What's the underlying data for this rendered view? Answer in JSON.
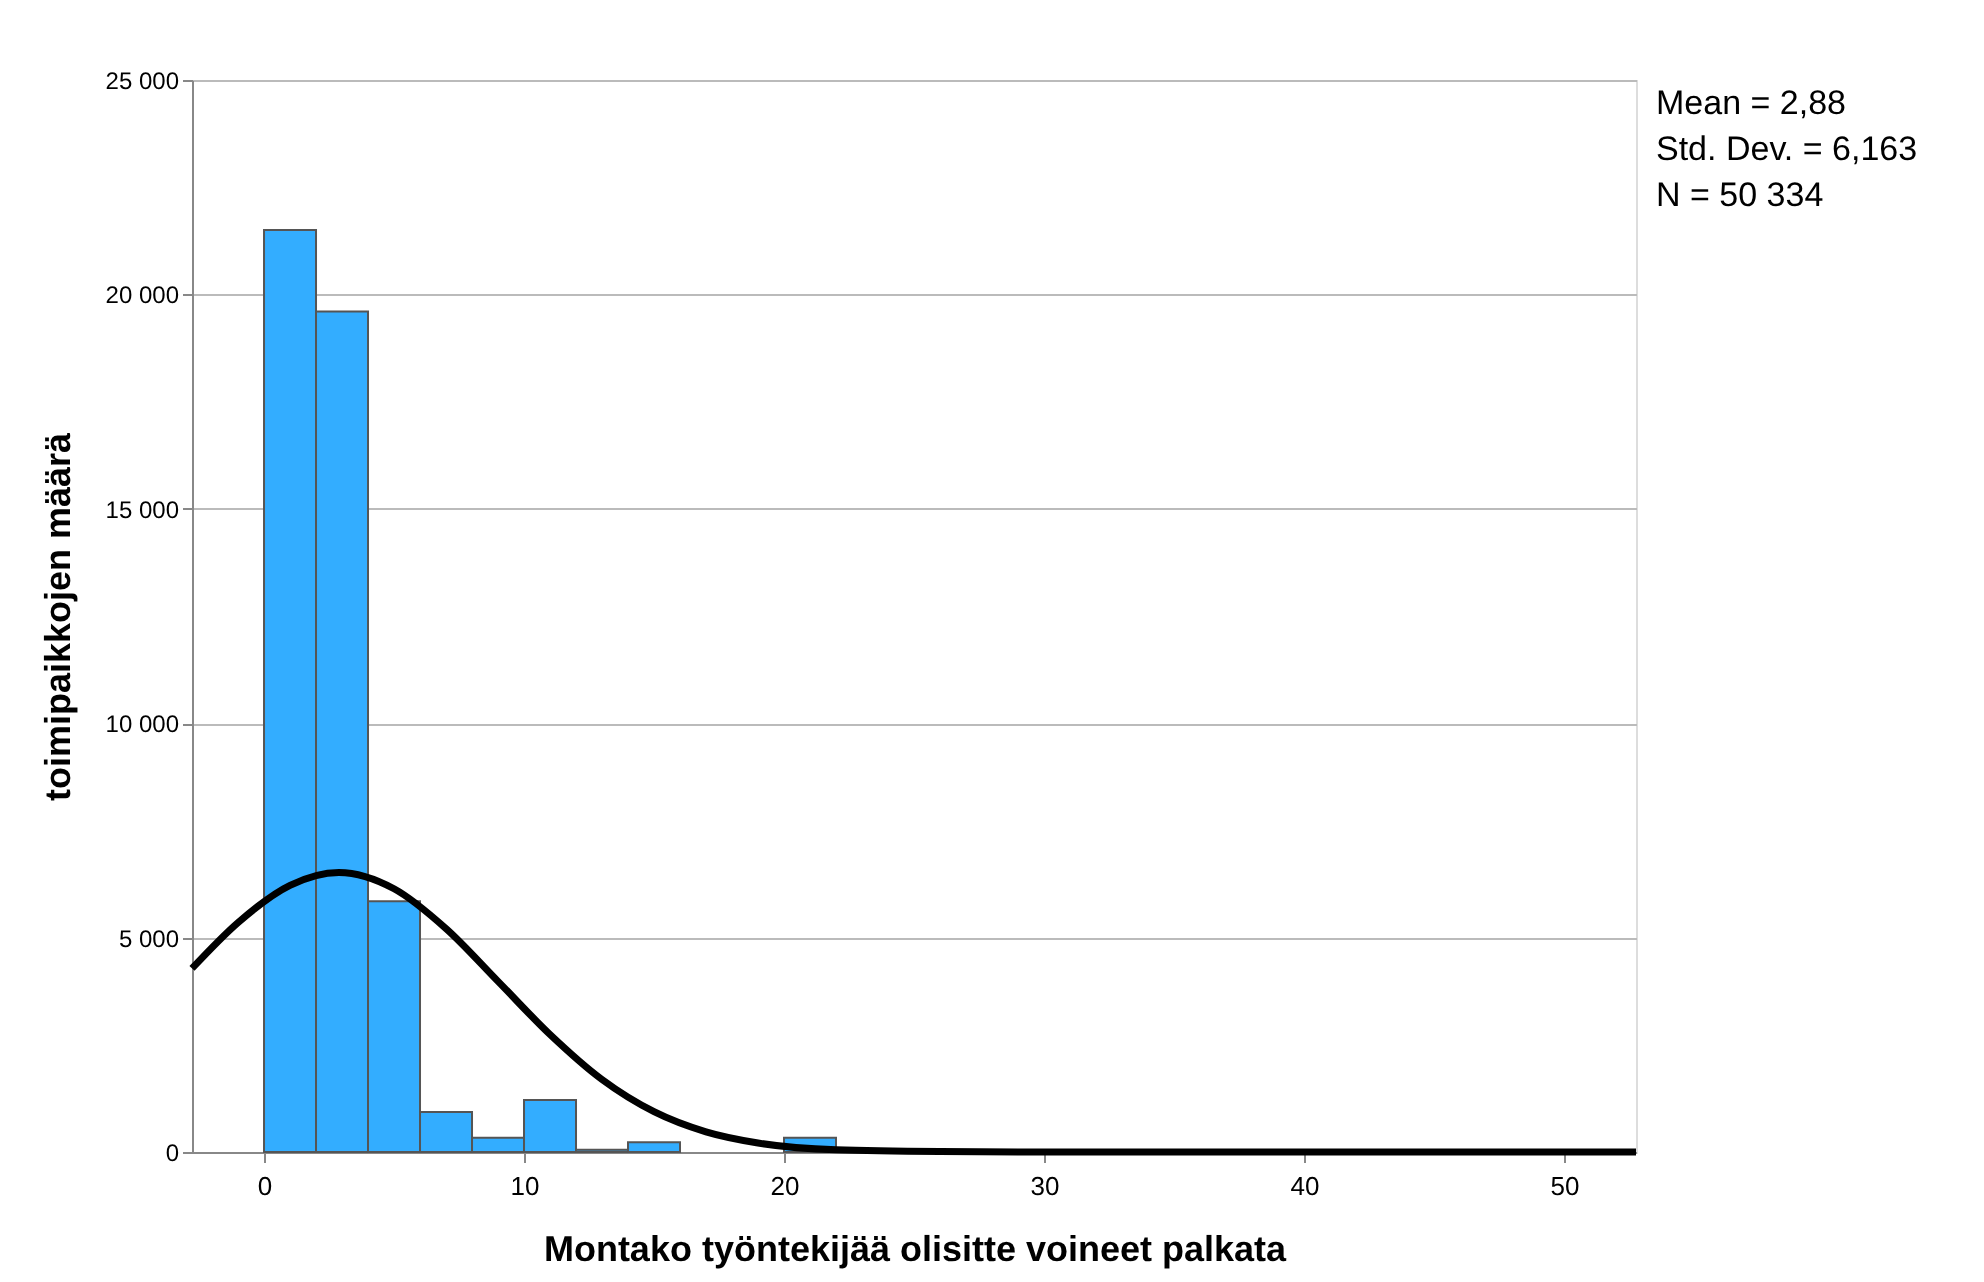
{
  "chart_data": {
    "type": "histogram",
    "xlabel": "Montako työntekijää olisitte voineet palkata",
    "ylabel": "toimipaikkojen määrä",
    "bins": [
      0,
      2,
      4,
      6,
      8,
      10,
      12,
      14,
      16,
      18,
      20,
      22,
      24,
      26,
      28,
      30,
      32
    ],
    "series": [
      {
        "color": "#33adff",
        "values": [
          21500,
          19600,
          5850,
          930,
          330,
          1210,
          50,
          230,
          0,
          0,
          330,
          0,
          0,
          0,
          0,
          null
        ]
      },
      {
        "type": "line",
        "color": "#000000",
        "x": [
          -2.77,
          -1,
          1,
          2.88,
          5,
          7,
          9,
          11,
          13,
          15,
          17,
          19,
          22,
          26,
          30,
          52.77
        ],
        "values": [
          4280,
          5350,
          6220,
          6520,
          6140,
          5210,
          3980,
          2740,
          1690,
          940,
          470,
          210,
          50,
          10,
          0,
          0
        ]
      }
    ],
    "xlim": [
      -2.77,
      52.77
    ],
    "xticks": [
      0,
      10,
      20,
      30,
      40,
      50
    ],
    "ylim": [
      0,
      25000
    ],
    "yticks": [
      {
        "value": 0,
        "label": "0"
      },
      {
        "value": 5000,
        "label": "5 000"
      },
      {
        "value": 10000,
        "label": "10 000"
      },
      {
        "value": 15000,
        "label": "15 000"
      },
      {
        "value": 20000,
        "label": "20 000"
      },
      {
        "value": 25000,
        "label": "25 000"
      }
    ],
    "grid": "y",
    "annotations": [
      "Mean = 2,88",
      "Std. Dev. = 6,163",
      "N = 50 334"
    ]
  }
}
